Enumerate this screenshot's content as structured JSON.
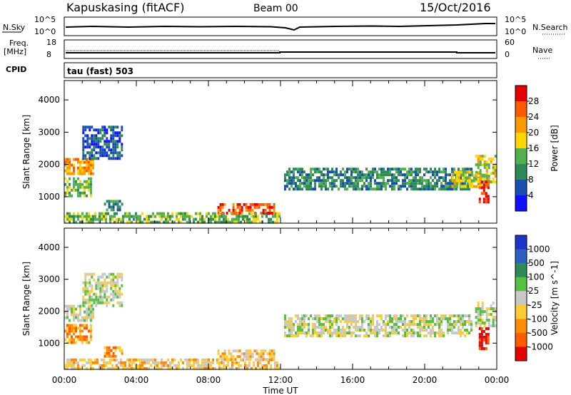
{
  "header": {
    "station": "Kapuskasing (fitACF)",
    "beam": "Beam 00",
    "date": "15/Oct/2016"
  },
  "noise_panel": {
    "left_label": "N.Sky",
    "right_label": "N.Search",
    "left_ticks": [
      "10^5",
      "10^0"
    ],
    "right_ticks": [
      "10^5",
      "10^0"
    ]
  },
  "freq_panel": {
    "left_label_1": "Freq.",
    "left_label_2": "[MHz]",
    "right_label": "Nave",
    "left_ticks": [
      "18",
      "8"
    ],
    "right_ticks": [
      "60",
      "0"
    ]
  },
  "cpid_panel": {
    "left_label": "CPID",
    "text": "tau (fast) 503"
  },
  "chart_data": [
    {
      "type": "heatmap",
      "quantity": "Power",
      "ylabel": "Slant Range [km]",
      "ylim": [
        180,
        4600
      ],
      "yticks": [
        "1000",
        "2000",
        "3000",
        "4000"
      ],
      "xlim_hours": [
        0,
        24
      ],
      "colorbar_label": "Power [dB]",
      "colorbar_ticks": [
        "4",
        "8",
        "12",
        "16",
        "20",
        "24",
        "28"
      ],
      "colors": [
        "#1010ff",
        "#1a4fb0",
        "#2e8b57",
        "#52b052",
        "#ffd700",
        "#ff9900",
        "#ff5a00",
        "#e60000"
      ],
      "echo_regions": [
        {
          "t0": 0.0,
          "t1": 1.6,
          "r0": 1750,
          "r1": 2200,
          "level": 5
        },
        {
          "t0": 0.0,
          "t1": 1.5,
          "r0": 1050,
          "r1": 1600,
          "level": 3
        },
        {
          "t0": 1.0,
          "t1": 3.2,
          "r0": 2200,
          "r1": 3200,
          "level": 1
        },
        {
          "t0": 2.2,
          "t1": 3.2,
          "r0": 600,
          "r1": 900,
          "level": 2
        },
        {
          "t0": 0.0,
          "t1": 12.0,
          "r0": 250,
          "r1": 520,
          "level": 3
        },
        {
          "t0": 8.5,
          "t1": 11.7,
          "r0": 500,
          "r1": 800,
          "level": 6
        },
        {
          "t0": 12.2,
          "t1": 22.6,
          "r0": 1250,
          "r1": 1900,
          "level": 2
        },
        {
          "t0": 21.5,
          "t1": 23.5,
          "r0": 1300,
          "r1": 1800,
          "level": 4
        },
        {
          "t0": 22.8,
          "t1": 23.9,
          "r0": 1500,
          "r1": 2300,
          "level": 4
        },
        {
          "t0": 23.0,
          "t1": 23.5,
          "r0": 800,
          "r1": 1500,
          "level": 7
        }
      ]
    },
    {
      "type": "heatmap",
      "quantity": "Velocity",
      "ylabel": "Slant Range [km]",
      "ylim": [
        180,
        4600
      ],
      "yticks": [
        "1000",
        "2000",
        "3000",
        "4000"
      ],
      "xlim_hours": [
        0,
        24
      ],
      "xlabel": "Time UT",
      "xticks": [
        "00:00",
        "04:00",
        "08:00",
        "12:00",
        "16:00",
        "20:00",
        "00:00"
      ],
      "colorbar_label": "Velocity [m s^-1]",
      "colorbar_ticks": [
        "1000",
        "500",
        "100",
        "25",
        "-25",
        "-100",
        "-500",
        "-1000"
      ],
      "colors": [
        "#1a35c8",
        "#2d5fc0",
        "#2e8b57",
        "#58c040",
        "#c8c8c8",
        "#ffcc33",
        "#ff8c00",
        "#ff5a00",
        "#e60000"
      ],
      "echo_regions": [
        {
          "t0": 0.0,
          "t1": 1.6,
          "r0": 1750,
          "r1": 2200,
          "level": 4
        },
        {
          "t0": 0.0,
          "t1": 1.5,
          "r0": 1050,
          "r1": 1600,
          "level": 6
        },
        {
          "t0": 1.0,
          "t1": 3.2,
          "r0": 2200,
          "r1": 3200,
          "level": 4
        },
        {
          "t0": 2.2,
          "t1": 3.2,
          "r0": 600,
          "r1": 900,
          "level": 6
        },
        {
          "t0": 0.0,
          "t1": 12.0,
          "r0": 250,
          "r1": 520,
          "level": 5
        },
        {
          "t0": 8.5,
          "t1": 11.7,
          "r0": 500,
          "r1": 800,
          "level": 5
        },
        {
          "t0": 12.2,
          "t1": 22.6,
          "r0": 1250,
          "r1": 1900,
          "level": 4
        },
        {
          "t0": 22.8,
          "t1": 23.9,
          "r0": 1500,
          "r1": 2300,
          "level": 4
        },
        {
          "t0": 23.0,
          "t1": 23.5,
          "r0": 800,
          "r1": 1500,
          "level": 8
        }
      ]
    }
  ]
}
